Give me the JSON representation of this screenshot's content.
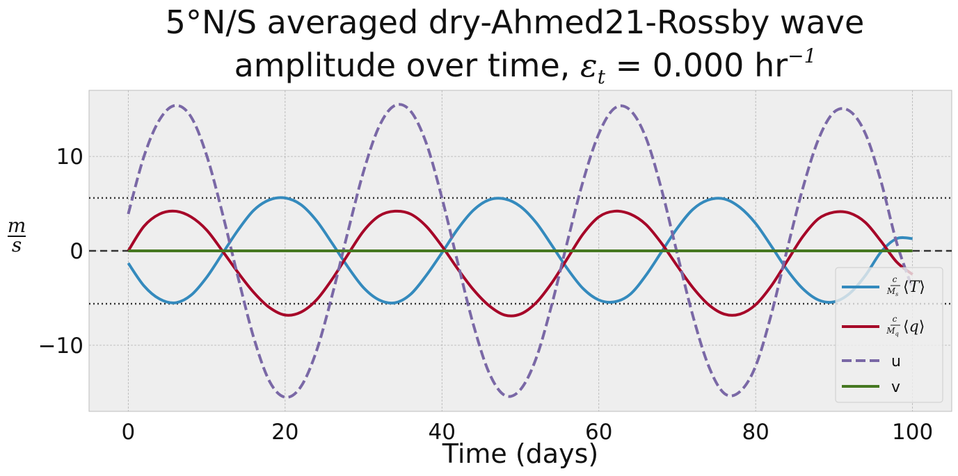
{
  "chart_data": {
    "type": "line",
    "title_line1": "5°N/S averaged dry-Ahmed21-Rossby wave",
    "title_line2_prefix": "amplitude over time, ",
    "title_line2_symbol": "ε",
    "title_line2_subscript": "t",
    "title_line2_value": " = 0.000 hr",
    "title_line2_exponent": "−1",
    "xlabel": "Time (days)",
    "ylabel_num": "m",
    "ylabel_den": "s",
    "xlim": [
      -5,
      105
    ],
    "ylim": [
      -17,
      17
    ],
    "xticks": [
      0,
      20,
      40,
      60,
      80,
      100
    ],
    "xtick_labels": [
      "0",
      "20",
      "40",
      "60",
      "80",
      "100"
    ],
    "yticks": [
      -10,
      0,
      10
    ],
    "ytick_labels": [
      "−10",
      "0",
      "10"
    ],
    "grid": true,
    "legend_position": "lower-right",
    "reference_lines": [
      {
        "y": 5.6,
        "style": "dotted",
        "color": "#333333"
      },
      {
        "y": -5.6,
        "style": "dotted",
        "color": "#333333"
      },
      {
        "y": 0,
        "style": "dashed",
        "color": "#333333"
      }
    ],
    "x": [
      0,
      2,
      4,
      6,
      8,
      10,
      12,
      14,
      16,
      18,
      20,
      22,
      24,
      26,
      28,
      30,
      32,
      34,
      36,
      38,
      40,
      42,
      44,
      46,
      48,
      50,
      52,
      54,
      56,
      58,
      60,
      62,
      64,
      66,
      68,
      70,
      72,
      74,
      76,
      78,
      80,
      82,
      84,
      86,
      88,
      90,
      92,
      94,
      96,
      98,
      100
    ],
    "series": [
      {
        "name": "c/M_s ⟨T⟩",
        "legend_num": "c",
        "legend_den": "M",
        "legend_den_sub": "s",
        "legend_var": "T",
        "color": "#348abd",
        "style": "solid",
        "values": [
          -1.3,
          -3.7,
          -5.1,
          -5.5,
          -4.7,
          -2.8,
          -0.3,
          2.2,
          4.3,
          5.4,
          5.6,
          4.9,
          3.2,
          0.8,
          -1.7,
          -3.9,
          -5.2,
          -5.5,
          -4.6,
          -2.6,
          -0.2,
          2.3,
          4.3,
          5.4,
          5.5,
          4.7,
          3.0,
          0.6,
          -1.9,
          -4.0,
          -5.2,
          -5.4,
          -4.6,
          -2.6,
          -0.1,
          2.4,
          4.4,
          5.4,
          5.5,
          4.6,
          2.9,
          0.5,
          -2.0,
          -4.0,
          -5.2,
          -5.4,
          -4.5,
          -2.6,
          -0.1,
          1.3,
          1.3
        ]
      },
      {
        "name": "c/M_q ⟨q⟩",
        "legend_num": "c",
        "legend_den": "M",
        "legend_den_sub": "q",
        "legend_var": "q",
        "color": "#a60628",
        "style": "solid",
        "values": [
          0.0,
          2.6,
          3.9,
          4.2,
          3.6,
          2.2,
          0.0,
          -2.3,
          -4.4,
          -6.0,
          -6.8,
          -6.5,
          -5.2,
          -3.0,
          -0.4,
          2.1,
          3.7,
          4.2,
          3.9,
          2.6,
          0.5,
          -1.9,
          -4.1,
          -5.8,
          -6.8,
          -6.7,
          -5.5,
          -3.4,
          -0.8,
          1.8,
          3.6,
          4.2,
          3.9,
          2.8,
          0.8,
          -1.6,
          -3.9,
          -5.7,
          -6.7,
          -6.7,
          -5.7,
          -3.7,
          -1.1,
          1.5,
          3.4,
          4.1,
          4.0,
          3.0,
          1.0,
          -1.2,
          -2.5
        ]
      },
      {
        "name": "u",
        "legend_label": "u",
        "color": "#7a68a6",
        "style": "dashed",
        "values": [
          3.9,
          10.0,
          13.9,
          15.4,
          14.2,
          10.1,
          4.0,
          -2.8,
          -9.2,
          -13.8,
          -15.5,
          -14.4,
          -10.6,
          -4.7,
          2.0,
          8.4,
          13.2,
          15.4,
          14.8,
          11.4,
          5.6,
          -1.2,
          -7.8,
          -12.9,
          -15.3,
          -14.7,
          -11.4,
          -5.7,
          1.0,
          7.4,
          12.4,
          15.1,
          14.9,
          12.0,
          6.5,
          -0.3,
          -6.9,
          -12.2,
          -15.1,
          -14.9,
          -12.2,
          -6.7,
          0.1,
          6.6,
          11.8,
          14.7,
          14.8,
          12.4,
          7.3,
          0.8,
          -4.0
        ]
      },
      {
        "name": "v",
        "legend_label": "v",
        "color": "#467821",
        "style": "solid",
        "values": [
          0,
          0,
          0,
          0,
          0,
          0,
          0,
          0,
          0,
          0,
          0,
          0,
          0,
          0,
          0,
          0,
          0,
          0,
          0,
          0,
          0,
          0,
          0,
          0,
          0,
          0,
          0,
          0,
          0,
          0,
          0,
          0,
          0,
          0,
          0,
          0,
          0,
          0,
          0,
          0,
          0,
          0,
          0,
          0,
          0,
          0,
          0,
          0,
          0,
          0,
          0
        ]
      }
    ]
  }
}
